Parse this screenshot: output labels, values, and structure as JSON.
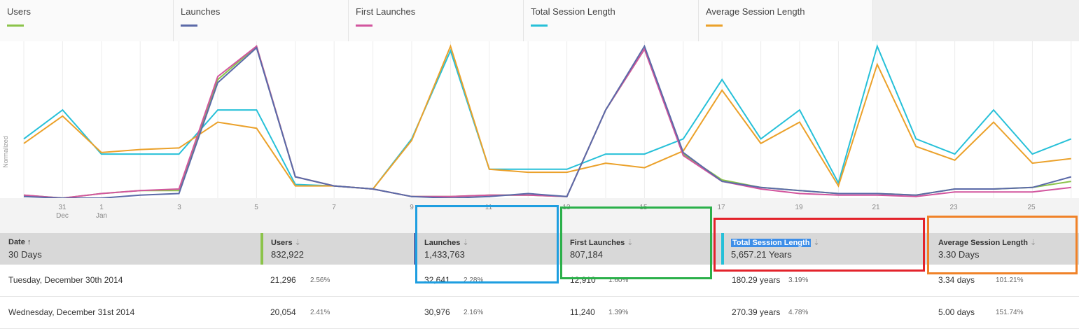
{
  "legend": [
    {
      "label": "Users",
      "color": "#8bc34a"
    },
    {
      "label": "Launches",
      "color": "#5b6aa8"
    },
    {
      "label": "First Launches",
      "color": "#d2559e"
    },
    {
      "label": "Total Session Length",
      "color": "#26c0d8"
    },
    {
      "label": "Average Session Length",
      "color": "#eba12a"
    }
  ],
  "chart": {
    "ylabel": "Normalized",
    "xticks": [
      {
        "label": "31",
        "sub": "Dec"
      },
      {
        "label": "1",
        "sub": "Jan"
      },
      {
        "label": "3",
        "sub": ""
      },
      {
        "label": "5",
        "sub": ""
      },
      {
        "label": "7",
        "sub": ""
      },
      {
        "label": "9",
        "sub": ""
      },
      {
        "label": "11",
        "sub": ""
      },
      {
        "label": "13",
        "sub": ""
      },
      {
        "label": "15",
        "sub": ""
      },
      {
        "label": "17",
        "sub": ""
      },
      {
        "label": "19",
        "sub": ""
      },
      {
        "label": "21",
        "sub": ""
      },
      {
        "label": "23",
        "sub": ""
      },
      {
        "label": "25",
        "sub": ""
      }
    ]
  },
  "table": {
    "columns": [
      {
        "header": "Date",
        "sort": "↑",
        "total": "30 Days"
      },
      {
        "header": "Users",
        "sort": "⇣",
        "total": "832,922"
      },
      {
        "header": "Launches",
        "sort": "⇣",
        "total": "1,433,763"
      },
      {
        "header": "First Launches",
        "sort": "⇣",
        "total": "807,184"
      },
      {
        "header": "Total Session Length",
        "sort": "⇣",
        "total": "5,657.21 Years"
      },
      {
        "header": "Average Session Length",
        "sort": "⇣",
        "total": "3.30 Days"
      }
    ],
    "rows": [
      {
        "date": "Tuesday, December 30th 2014",
        "users": "21,296",
        "users_pct": "2.56%",
        "launches": "32,641",
        "launches_pct": "2.28%",
        "first": "12,910",
        "first_pct": "1.60%",
        "tsl": "180.29 years",
        "tsl_pct": "3.19%",
        "asl": "3.34 days",
        "asl_pct": "101.21%"
      },
      {
        "date": "Wednesday, December 31st 2014",
        "users": "20,054",
        "users_pct": "2.41%",
        "launches": "30,976",
        "launches_pct": "2.16%",
        "first": "11,240",
        "first_pct": "1.39%",
        "tsl": "270.39 years",
        "tsl_pct": "4.78%",
        "asl": "5.00 days",
        "asl_pct": "151.74%"
      }
    ]
  },
  "chart_data": {
    "type": "line",
    "ylabel": "Normalized",
    "ylim": [
      0,
      1
    ],
    "x": [
      "30",
      "31",
      "1",
      "2",
      "3",
      "4",
      "5",
      "6",
      "7",
      "8",
      "9",
      "10",
      "11",
      "12",
      "13",
      "14",
      "15",
      "16",
      "17",
      "18",
      "19",
      "20",
      "21",
      "22",
      "23",
      "24",
      "25",
      "26"
    ],
    "series": [
      {
        "name": "Users",
        "values": [
          0.02,
          0.0,
          0.03,
          0.05,
          0.05,
          0.78,
          1.0,
          0.14,
          0.08,
          0.06,
          0.01,
          0.01,
          0.02,
          0.02,
          0.01,
          0.58,
          0.98,
          0.29,
          0.12,
          0.07,
          0.05,
          0.03,
          0.03,
          0.02,
          0.06,
          0.06,
          0.07,
          0.11
        ]
      },
      {
        "name": "Launches",
        "values": [
          0.01,
          0.0,
          0.0,
          0.02,
          0.03,
          0.76,
          0.99,
          0.14,
          0.08,
          0.06,
          0.01,
          0.0,
          0.01,
          0.03,
          0.01,
          0.58,
          1.0,
          0.3,
          0.11,
          0.07,
          0.05,
          0.03,
          0.03,
          0.02,
          0.06,
          0.06,
          0.07,
          0.14
        ]
      },
      {
        "name": "First Launches",
        "values": [
          0.02,
          0.0,
          0.03,
          0.05,
          0.06,
          0.8,
          1.0,
          0.14,
          0.08,
          0.06,
          0.01,
          0.01,
          0.02,
          0.02,
          0.01,
          0.58,
          0.98,
          0.28,
          0.11,
          0.06,
          0.03,
          0.02,
          0.02,
          0.01,
          0.04,
          0.04,
          0.04,
          0.07
        ]
      },
      {
        "name": "Total Session Length",
        "values": [
          0.39,
          0.58,
          0.29,
          0.29,
          0.29,
          0.58,
          0.58,
          0.09,
          0.08,
          0.06,
          0.39,
          0.97,
          0.19,
          0.19,
          0.19,
          0.29,
          0.29,
          0.39,
          0.78,
          0.39,
          0.58,
          0.1,
          1.0,
          0.39,
          0.29,
          0.58,
          0.29,
          0.39
        ]
      },
      {
        "name": "Average Session Length",
        "values": [
          0.36,
          0.54,
          0.3,
          0.32,
          0.33,
          0.5,
          0.46,
          0.08,
          0.08,
          0.06,
          0.38,
          1.0,
          0.19,
          0.17,
          0.17,
          0.23,
          0.2,
          0.31,
          0.71,
          0.36,
          0.5,
          0.08,
          0.88,
          0.34,
          0.25,
          0.5,
          0.23,
          0.26
        ]
      }
    ]
  }
}
